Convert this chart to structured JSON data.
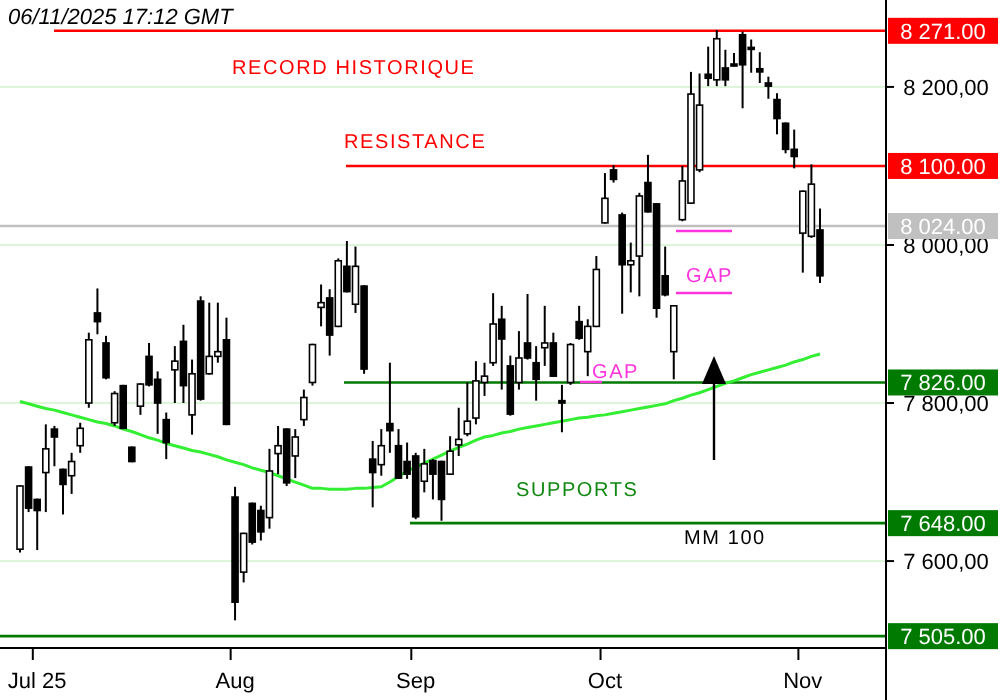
{
  "chart_data": {
    "type": "candlestick",
    "categories": [
      null,
      null,
      "Jul 25",
      null,
      null,
      null,
      null,
      null,
      null,
      null,
      null,
      null,
      null,
      null,
      null,
      null,
      null,
      null,
      null,
      null,
      null,
      null,
      null,
      null,
      null,
      "Aug",
      null,
      null,
      null,
      null,
      null,
      null,
      null,
      null,
      null,
      null,
      null,
      null,
      null,
      null,
      null,
      null,
      null,
      null,
      null,
      null,
      "Sep",
      null,
      null,
      null,
      null,
      null,
      null,
      null,
      null,
      null,
      null,
      null,
      null,
      null,
      null,
      null,
      null,
      null,
      null,
      null,
      null,
      null,
      "Oct",
      null,
      null,
      null,
      null,
      null,
      null,
      null,
      null,
      null,
      null,
      null,
      null,
      null,
      null,
      null,
      null,
      null,
      null,
      null,
      null,
      null,
      null,
      "Nov",
      null,
      null
    ],
    "ohlc": [
      [
        7615,
        7696,
        7611,
        7695
      ],
      [
        7719,
        7720,
        7662,
        7667
      ],
      [
        7678,
        7679,
        7614,
        7664
      ],
      [
        7712,
        7773,
        7662,
        7742
      ],
      [
        7767,
        7771,
        7720,
        7757
      ],
      [
        7716,
        7717,
        7659,
        7697
      ],
      [
        7708,
        7737,
        7685,
        7726
      ],
      [
        7746,
        7775,
        7737,
        7768
      ],
      [
        7800,
        7889,
        7794,
        7880
      ],
      [
        7914,
        7945,
        7887,
        7903
      ],
      [
        7876,
        7885,
        7830,
        7832
      ],
      [
        7775,
        7815,
        7771,
        7812
      ],
      [
        7822,
        7823,
        7767,
        7768
      ],
      [
        7744,
        7745,
        7725,
        7726
      ],
      [
        7796,
        7825,
        7785,
        7824
      ],
      [
        7859,
        7876,
        7821,
        7823
      ],
      [
        7830,
        7840,
        7761,
        7800
      ],
      [
        7779,
        7788,
        7729,
        7750
      ],
      [
        7842,
        7872,
        7800,
        7853
      ],
      [
        7878,
        7899,
        7800,
        7822
      ],
      [
        7785,
        7855,
        7760,
        7837
      ],
      [
        7929,
        7935,
        7803,
        7805
      ],
      [
        7837,
        7927,
        7836,
        7859
      ],
      [
        7859,
        7927,
        7851,
        7865
      ],
      [
        7880,
        7908,
        7772,
        7773
      ],
      [
        7681,
        7694,
        7525,
        7548
      ],
      [
        7586,
        7636,
        7573,
        7635
      ],
      [
        7673,
        7674,
        7621,
        7624
      ],
      [
        7664,
        7670,
        7626,
        7637
      ],
      [
        7655,
        7742,
        7641,
        7714
      ],
      [
        7736,
        7771,
        7710,
        7746
      ],
      [
        7767,
        7768,
        7695,
        7699
      ],
      [
        7733,
        7767,
        7705,
        7757
      ],
      [
        7779,
        7817,
        7771,
        7807
      ],
      [
        7826,
        7875,
        7822,
        7874
      ],
      [
        7921,
        7950,
        7897,
        7927
      ],
      [
        7933,
        7944,
        7860,
        7886
      ],
      [
        7897,
        7983,
        7896,
        7980
      ],
      [
        7973,
        8005,
        7940,
        7941
      ],
      [
        7925,
        7998,
        7914,
        7973
      ],
      [
        7948,
        7949,
        7837,
        7843
      ],
      [
        7729,
        7752,
        7668,
        7712
      ],
      [
        7722,
        7767,
        7708,
        7746
      ],
      [
        7774,
        7851,
        7737,
        7765
      ],
      [
        7746,
        7767,
        7704,
        7705
      ],
      [
        7726,
        7750,
        7704,
        7710
      ],
      [
        7733,
        7737,
        7653,
        7656
      ],
      [
        7701,
        7742,
        7687,
        7723
      ],
      [
        7727,
        7729,
        7678,
        7710
      ],
      [
        7726,
        7727,
        7651,
        7678
      ],
      [
        7710,
        7758,
        7709,
        7739
      ],
      [
        7747,
        7794,
        7733,
        7754
      ],
      [
        7761,
        7826,
        7758,
        7777
      ],
      [
        7781,
        7853,
        7773,
        7828
      ],
      [
        7826,
        7851,
        7809,
        7834
      ],
      [
        7851,
        7939,
        7847,
        7900
      ],
      [
        7906,
        7923,
        7817,
        7881
      ],
      [
        7847,
        7860,
        7784,
        7786
      ],
      [
        7826,
        7891,
        7817,
        7857
      ],
      [
        7876,
        7938,
        7855,
        7857
      ],
      [
        7851,
        7872,
        7803,
        7830
      ],
      [
        7870,
        7923,
        7847,
        7876
      ],
      [
        7876,
        7889,
        7833,
        7834
      ],
      [
        7803,
        7823,
        7763,
        7800
      ],
      [
        7826,
        7876,
        7823,
        7874
      ],
      [
        7903,
        7923,
        7880,
        7882
      ],
      [
        7865,
        7906,
        7834,
        7897
      ],
      [
        7897,
        7986,
        7896,
        7969
      ],
      [
        8028,
        8091,
        8027,
        8059
      ],
      [
        8095,
        8101,
        8079,
        8083
      ],
      [
        8038,
        8041,
        7913,
        7975
      ],
      [
        7975,
        8003,
        7940,
        7980
      ],
      [
        7986,
        8066,
        7935,
        8062
      ],
      [
        8079,
        8114,
        8041,
        8042
      ],
      [
        8052,
        8053,
        7908,
        7920
      ],
      [
        7961,
        7998,
        7935,
        7937
      ],
      [
        7865,
        7924,
        7830,
        7923
      ],
      [
        8032,
        8100,
        8030,
        8081
      ],
      [
        8053,
        8219,
        8052,
        8191
      ],
      [
        8095,
        8217,
        8092,
        8177
      ],
      [
        8216,
        8251,
        8201,
        8211
      ],
      [
        8209,
        8272,
        8201,
        8261
      ],
      [
        8224,
        8247,
        8201,
        8209
      ],
      [
        8229,
        8243,
        8226,
        8228
      ],
      [
        8266,
        8270,
        8173,
        8228
      ],
      [
        8250,
        8260,
        8218,
        8248
      ],
      [
        8223,
        8244,
        8205,
        8219
      ],
      [
        8205,
        8213,
        8185,
        8201
      ],
      [
        8184,
        8192,
        8140,
        8160
      ],
      [
        8154,
        8155,
        8116,
        8121
      ],
      [
        8121,
        8146,
        8097,
        8112
      ],
      [
        8015,
        8069,
        7965,
        8068
      ],
      [
        8011,
        8102,
        8009,
        8077
      ],
      [
        8019,
        8046,
        7952,
        7961
      ]
    ],
    "series": [
      {
        "type": "line",
        "color": "#33ee33",
        "values": [
          7802,
          7799,
          7796,
          7793,
          7791,
          7788,
          7785,
          7782,
          7779,
          7776,
          7774,
          7771,
          7767,
          7764,
          7760,
          7756,
          7753,
          7749,
          7746,
          7743,
          7740,
          7738,
          7735,
          7732,
          7728,
          7725,
          7722,
          7718,
          7715,
          7712,
          7708,
          7704,
          7700,
          7696,
          7692,
          7692,
          7691,
          7691,
          7691,
          7692,
          7692,
          7693,
          7694,
          7700,
          7707,
          7714,
          7719,
          7724,
          7729,
          7734,
          7739,
          7744,
          7748,
          7753,
          7757,
          7759,
          7762,
          7764,
          7767,
          7769,
          7771,
          7773,
          7775,
          7777,
          7779,
          7781,
          7782,
          7784,
          7785,
          7787,
          7789,
          7791,
          7793,
          7795,
          7797,
          7799,
          7803,
          7806,
          7810,
          7813,
          7817,
          7821,
          7825,
          7828,
          7832,
          7836,
          7839,
          7842,
          7845,
          7848,
          7852,
          7855,
          7859,
          7862
        ]
      }
    ],
    "ylim": [
      7490,
      8310
    ],
    "yticks": [
      {
        "value": 7600,
        "label": "7 600,00"
      },
      {
        "value": 7800,
        "label": "7 800,00"
      },
      {
        "value": 8000,
        "label": "8 000,00"
      },
      {
        "value": 8200,
        "label": "8 200,00"
      }
    ],
    "grid": "y",
    "ref_lines": [
      {
        "axis": "y",
        "value": 8271,
        "label": "8 271.00",
        "color": "#ff0000"
      },
      {
        "axis": "y",
        "value": 8100,
        "label": "8 100.00",
        "color": "#ff0000"
      },
      {
        "axis": "y",
        "value": 8024,
        "label": "8 024.00",
        "color": "#c0c0c0"
      },
      {
        "axis": "y",
        "value": 7826,
        "label": "7 826.00",
        "color": "#007a00"
      },
      {
        "axis": "y",
        "value": 7648,
        "label": "7 648.00",
        "color": "#007a00"
      },
      {
        "axis": "y",
        "value": 7505,
        "label": "7 505.00",
        "color": "#007a00"
      }
    ],
    "annotations": [
      "06/11/2025  17:12 GMT",
      "RECORD HISTORIQUE",
      "RESISTANCE",
      "GAP",
      "GAP",
      "SUPPORTS",
      "MM 100"
    ]
  }
}
